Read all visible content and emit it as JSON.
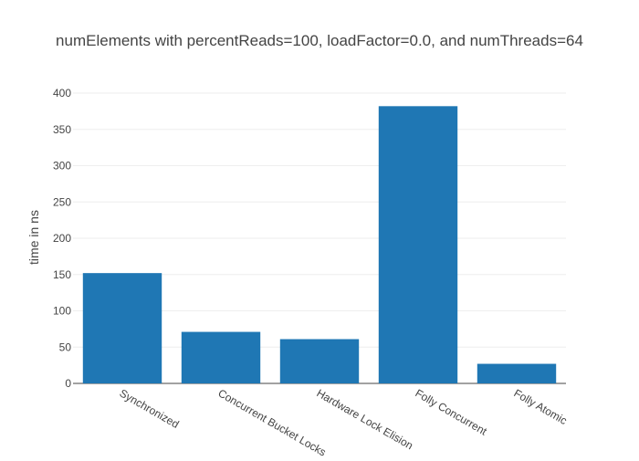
{
  "chart_data": {
    "type": "bar",
    "title": "numElements with percentReads=100, loadFactor=0.0, and numThreads=64",
    "xlabel": "",
    "ylabel": "time in ns",
    "categories": [
      "Synchronized",
      "Concurrent Bucket Locks",
      "Hardware Lock Elision",
      "Folly Concurrent",
      "Folly Atomic"
    ],
    "values": [
      152,
      71,
      61,
      382,
      27
    ],
    "ylim": [
      0,
      400
    ],
    "yticks": [
      0,
      50,
      100,
      150,
      200,
      250,
      300,
      350,
      400
    ],
    "grid": true,
    "legend": "none",
    "bar_color": "#1f77b4"
  }
}
